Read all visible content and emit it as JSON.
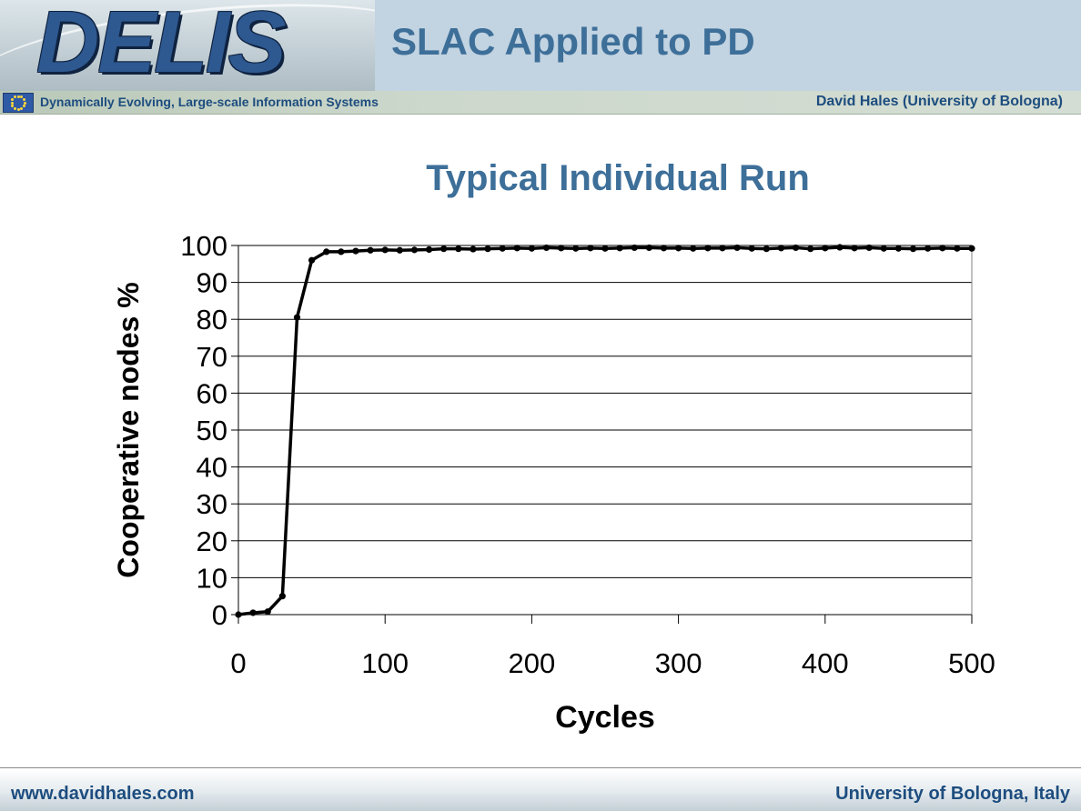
{
  "header": {
    "logo_text": "DELIS",
    "slide_title": "SLAC Applied to PD",
    "tagline": "Dynamically Evolving, Large-scale Information Systems",
    "author": "David Hales (University of Bologna)"
  },
  "footer": {
    "left": "www.davidhales.com",
    "right": "University of Bologna, Italy"
  },
  "colors": {
    "title_blue": "#3d6f99",
    "text_navy": "#1d4d7f",
    "header_title_bg": "#c2d3e1",
    "series": "#000000"
  },
  "chart_data": {
    "type": "line",
    "title": "Typical Individual Run",
    "xlabel": "Cycles",
    "ylabel": "Cooperative nodes %",
    "xlim": [
      0,
      500
    ],
    "ylim": [
      0,
      100
    ],
    "x_ticks": [
      0,
      100,
      200,
      300,
      400,
      500
    ],
    "y_ticks": [
      0,
      10,
      20,
      30,
      40,
      50,
      60,
      70,
      80,
      90,
      100
    ],
    "grid": "horizontal",
    "legend": "none",
    "x": [
      0,
      10,
      20,
      30,
      40,
      50,
      60,
      70,
      80,
      90,
      100,
      110,
      120,
      130,
      140,
      150,
      160,
      170,
      180,
      190,
      200,
      210,
      220,
      230,
      240,
      250,
      260,
      270,
      280,
      290,
      300,
      310,
      320,
      330,
      340,
      350,
      360,
      370,
      380,
      390,
      400,
      410,
      420,
      430,
      440,
      450,
      460,
      470,
      480,
      490,
      500
    ],
    "series": [
      {
        "values": [
          0,
          0.5,
          0.8,
          5,
          80.5,
          96,
          98.3,
          98.3,
          98.5,
          98.7,
          98.8,
          98.7,
          98.8,
          98.9,
          99.1,
          99.1,
          99.0,
          99.1,
          99.2,
          99.3,
          99.2,
          99.4,
          99.3,
          99.2,
          99.3,
          99.2,
          99.3,
          99.4,
          99.4,
          99.3,
          99.3,
          99.2,
          99.3,
          99.3,
          99.4,
          99.2,
          99.1,
          99.3,
          99.4,
          99.1,
          99.3,
          99.5,
          99.3,
          99.4,
          99.2,
          99.2,
          99.1,
          99.2,
          99.3,
          99.2,
          99.2
        ]
      }
    ]
  }
}
